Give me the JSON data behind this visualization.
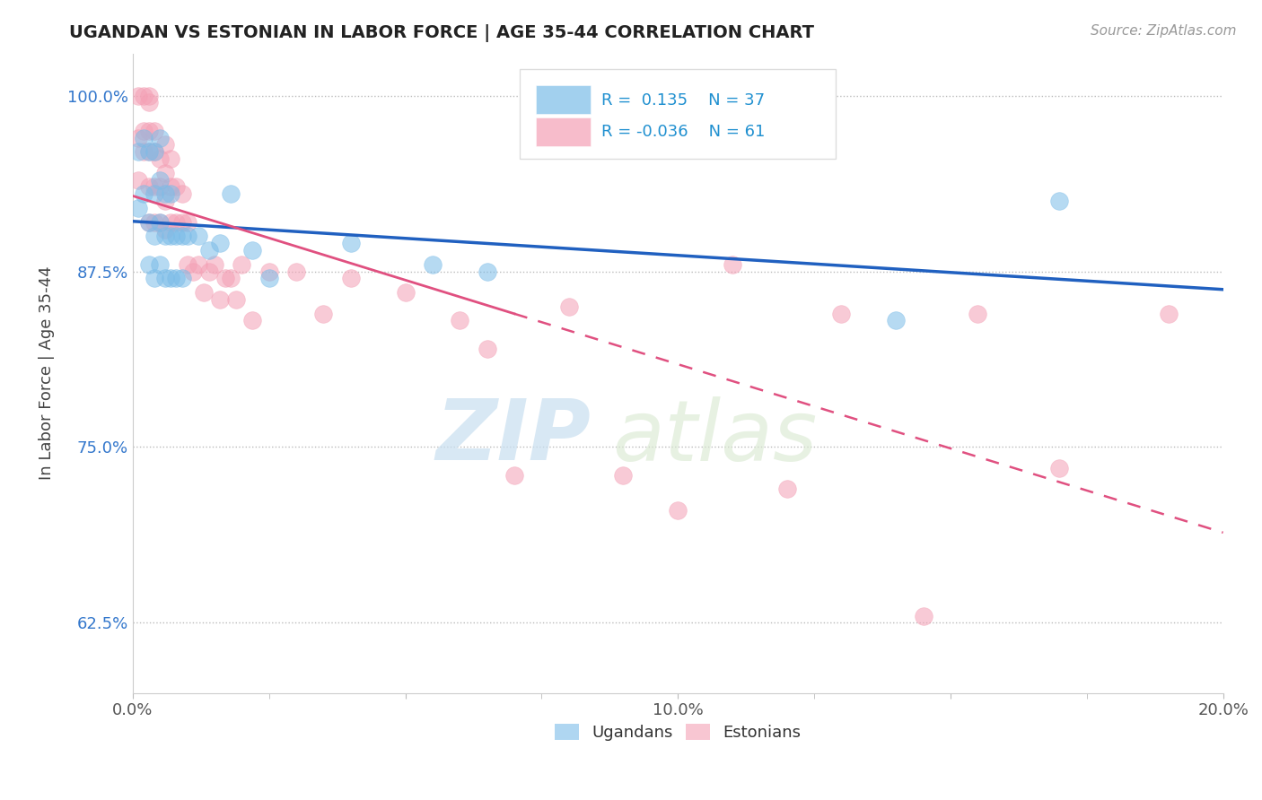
{
  "title": "UGANDAN VS ESTONIAN IN LABOR FORCE | AGE 35-44 CORRELATION CHART",
  "source_text": "Source: ZipAtlas.com",
  "ylabel": "In Labor Force | Age 35-44",
  "xlim": [
    0.0,
    0.2
  ],
  "ylim": [
    0.575,
    1.03
  ],
  "yticks": [
    0.625,
    0.75,
    0.875,
    1.0
  ],
  "ytick_labels": [
    "62.5%",
    "75.0%",
    "87.5%",
    "100.0%"
  ],
  "xticks": [
    0.0,
    0.05,
    0.1,
    0.15,
    0.2
  ],
  "xtick_labels": [
    "0.0%",
    "",
    "10.0%",
    "",
    "20.0%"
  ],
  "ugandan_R": 0.135,
  "ugandan_N": 37,
  "estonian_R": -0.036,
  "estonian_N": 61,
  "ugandan_color": "#7bbce8",
  "estonian_color": "#f4a0b5",
  "ugandan_line_color": "#2060c0",
  "estonian_line_color": "#e05080",
  "watermark_zip": "ZIP",
  "watermark_atlas": "atlas",
  "ugandan_x": [
    0.001,
    0.001,
    0.002,
    0.002,
    0.003,
    0.003,
    0.003,
    0.004,
    0.004,
    0.004,
    0.004,
    0.005,
    0.005,
    0.005,
    0.005,
    0.006,
    0.006,
    0.006,
    0.007,
    0.007,
    0.007,
    0.008,
    0.008,
    0.009,
    0.009,
    0.01,
    0.012,
    0.014,
    0.016,
    0.018,
    0.022,
    0.025,
    0.04,
    0.055,
    0.065,
    0.14,
    0.17
  ],
  "ugandan_y": [
    0.92,
    0.96,
    0.93,
    0.97,
    0.88,
    0.91,
    0.96,
    0.87,
    0.9,
    0.93,
    0.96,
    0.88,
    0.91,
    0.94,
    0.97,
    0.87,
    0.9,
    0.93,
    0.87,
    0.9,
    0.93,
    0.87,
    0.9,
    0.87,
    0.9,
    0.9,
    0.9,
    0.89,
    0.895,
    0.93,
    0.89,
    0.87,
    0.895,
    0.88,
    0.875,
    0.84,
    0.925
  ],
  "estonian_x": [
    0.001,
    0.001,
    0.001,
    0.002,
    0.002,
    0.002,
    0.003,
    0.003,
    0.003,
    0.003,
    0.003,
    0.003,
    0.004,
    0.004,
    0.004,
    0.004,
    0.005,
    0.005,
    0.005,
    0.006,
    0.006,
    0.006,
    0.006,
    0.007,
    0.007,
    0.007,
    0.008,
    0.008,
    0.009,
    0.009,
    0.01,
    0.01,
    0.011,
    0.012,
    0.013,
    0.014,
    0.015,
    0.016,
    0.017,
    0.018,
    0.019,
    0.02,
    0.022,
    0.025,
    0.03,
    0.035,
    0.04,
    0.05,
    0.06,
    0.065,
    0.07,
    0.08,
    0.09,
    0.1,
    0.11,
    0.12,
    0.13,
    0.145,
    0.155,
    0.17,
    0.19
  ],
  "estonian_y": [
    0.97,
    1.0,
    0.94,
    0.975,
    1.0,
    0.96,
    0.91,
    0.935,
    0.96,
    0.975,
    0.995,
    1.0,
    0.91,
    0.935,
    0.96,
    0.975,
    0.91,
    0.935,
    0.955,
    0.905,
    0.925,
    0.945,
    0.965,
    0.91,
    0.935,
    0.955,
    0.91,
    0.935,
    0.91,
    0.93,
    0.88,
    0.91,
    0.875,
    0.88,
    0.86,
    0.875,
    0.88,
    0.855,
    0.87,
    0.87,
    0.855,
    0.88,
    0.84,
    0.875,
    0.875,
    0.845,
    0.87,
    0.86,
    0.84,
    0.82,
    0.73,
    0.85,
    0.73,
    0.705,
    0.88,
    0.72,
    0.845,
    0.63,
    0.845,
    0.735,
    0.845
  ],
  "legend_R_color": "#2090d0",
  "legend_N_color": "#2090d0",
  "ytick_color": "#3377cc",
  "xtick_color": "#555555"
}
